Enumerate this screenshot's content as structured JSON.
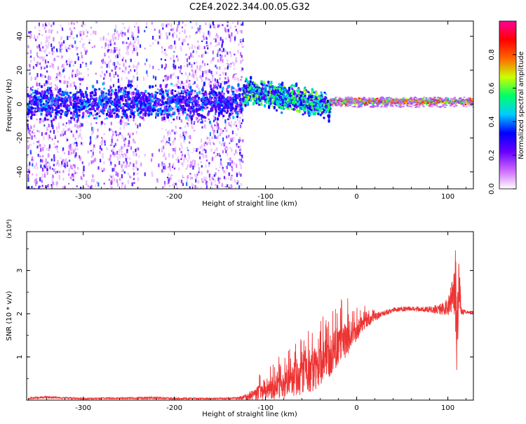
{
  "title": "C2E4.2022.344.00.05.G32",
  "chart_data": [
    {
      "type": "heatmap",
      "xlabel": "Height of straight line (km)",
      "ylabel": "Frequency (Hz)",
      "xlim": [
        -362,
        128
      ],
      "ylim": [
        -50,
        49
      ],
      "xticks": [
        -300,
        -200,
        -100,
        0,
        100
      ],
      "yticks": [
        -40,
        -20,
        0,
        20,
        40
      ],
      "colorbar": {
        "label": "Normalized spectral amplitude",
        "range": [
          0.0,
          1.0
        ],
        "ticks": [
          0.0,
          0.2,
          0.4,
          0.6,
          0.8
        ],
        "colormap": [
          "#ffffff",
          "#cc66ff",
          "#6600ff",
          "#0000ff",
          "#00ccff",
          "#00ff66",
          "#ccff00",
          "#ff6600",
          "#ff0000",
          "#ff0099"
        ],
        "placement": "right"
      },
      "bands": [
        {
          "x_range": [
            -362,
            -125
          ],
          "y_center": 1,
          "y_halfwidth": 8,
          "level": "0.2-0.5",
          "note": "scattered"
        },
        {
          "x_range": [
            -125,
            -30
          ],
          "y_center": 5,
          "y_halfwidth": 6,
          "level": "0.3-0.7",
          "note": "descending from ~8 Hz to ~-2 Hz"
        },
        {
          "x_range": [
            -30,
            128
          ],
          "y_center": 1.5,
          "y_halfwidth": 1.5,
          "level": "0.5-0.9",
          "note": "narrow line"
        }
      ]
    },
    {
      "type": "line",
      "xlabel": "Height of straight line (km)",
      "ylabel": "SNR (10 * v/v)",
      "y_multiplier": "(x10⁴)",
      "xlim": [
        -362,
        128
      ],
      "ylim": [
        0,
        3.9
      ],
      "xticks": [
        -300,
        -200,
        -100,
        0,
        100
      ],
      "yticks": [
        1,
        2,
        3
      ],
      "series": [
        {
          "color": "#ee3333",
          "x": [
            -360,
            -340,
            -300,
            -250,
            -220,
            -200,
            -160,
            -130,
            -120,
            -110,
            -100,
            -90,
            -80,
            -70,
            -60,
            -50,
            -40,
            -30,
            -20,
            -10,
            0,
            10,
            20,
            30,
            40,
            50,
            60,
            70,
            80,
            90,
            100,
            105,
            108,
            110,
            112,
            115,
            120,
            128
          ],
          "y": [
            0.05,
            0.07,
            0.04,
            0.05,
            0.06,
            0.04,
            0.04,
            0.05,
            0.1,
            0.18,
            0.25,
            0.32,
            0.4,
            0.5,
            0.6,
            0.75,
            0.9,
            1.1,
            1.3,
            1.5,
            1.65,
            1.85,
            1.95,
            2.02,
            2.1,
            2.12,
            2.13,
            2.12,
            2.12,
            2.12,
            2.2,
            2.5,
            2.9,
            1.6,
            2.9,
            2.05,
            2.05,
            2.04
          ],
          "noise": [
            0.03,
            0.03,
            0.02,
            0.02,
            0.04,
            0.02,
            0.02,
            0.03,
            0.1,
            0.2,
            0.25,
            0.35,
            0.4,
            0.45,
            0.5,
            0.6,
            0.6,
            0.6,
            0.55,
            0.5,
            0.3,
            0.2,
            0.12,
            0.08,
            0.07,
            0.07,
            0.07,
            0.08,
            0.1,
            0.15,
            0.25,
            0.5,
            1.2,
            1.2,
            0.8,
            0.1,
            0.04,
            0.03
          ]
        }
      ]
    }
  ]
}
